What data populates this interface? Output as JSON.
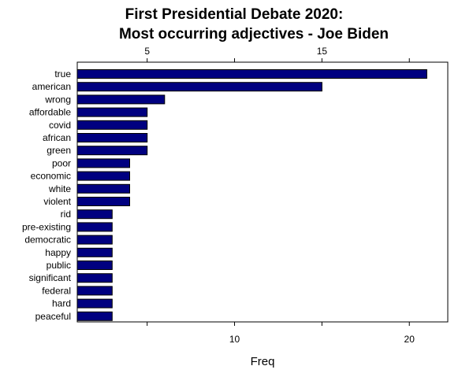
{
  "chart_data": {
    "type": "bar",
    "orientation": "horizontal",
    "title_line1": "First Presidential Debate 2020:",
    "title_line2": "Most occurring adjectives - Joe Biden",
    "xlabel": "Freq",
    "ylabel": "",
    "categories": [
      "true",
      "american",
      "wrong",
      "affordable",
      "covid",
      "african",
      "green",
      "poor",
      "economic",
      "white",
      "violent",
      "rid",
      "pre-existing",
      "democratic",
      "happy",
      "public",
      "significant",
      "federal",
      "hard",
      "peaceful"
    ],
    "values": [
      21,
      15,
      6,
      5,
      5,
      5,
      5,
      4,
      4,
      4,
      4,
      3,
      3,
      3,
      3,
      3,
      3,
      3,
      3,
      3
    ],
    "xlim": [
      1.0,
      22.2
    ],
    "xticks": [
      5,
      10,
      15,
      20
    ],
    "bar_color": "#000080",
    "grid": false,
    "legend": "none"
  }
}
